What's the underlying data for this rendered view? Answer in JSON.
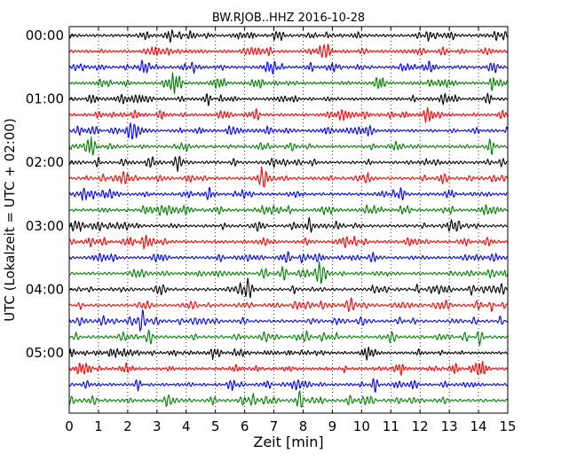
{
  "chart_data": {
    "type": "line",
    "title": "BW.RJOB..HHZ 2016-10-28",
    "xlabel": "Zeit  [min]",
    "ylabel": "UTC (Lokalzeit = UTC + 02:00)",
    "xlim": [
      0,
      15
    ],
    "x_ticks": [
      "0",
      "1",
      "2",
      "3",
      "4",
      "5",
      "6",
      "7",
      "8",
      "9",
      "10",
      "11",
      "12",
      "13",
      "14",
      "15"
    ],
    "y_tick_labels": [
      "00:00",
      "01:00",
      "02:00",
      "03:00",
      "04:00",
      "05:00"
    ],
    "minutes_per_trace": 15,
    "trace_count": 24,
    "trace_colors": [
      "#000000",
      "#ff0000",
      "#0000ff",
      "#008000"
    ],
    "x_grid": "dotted vertical lines at each minute"
  }
}
